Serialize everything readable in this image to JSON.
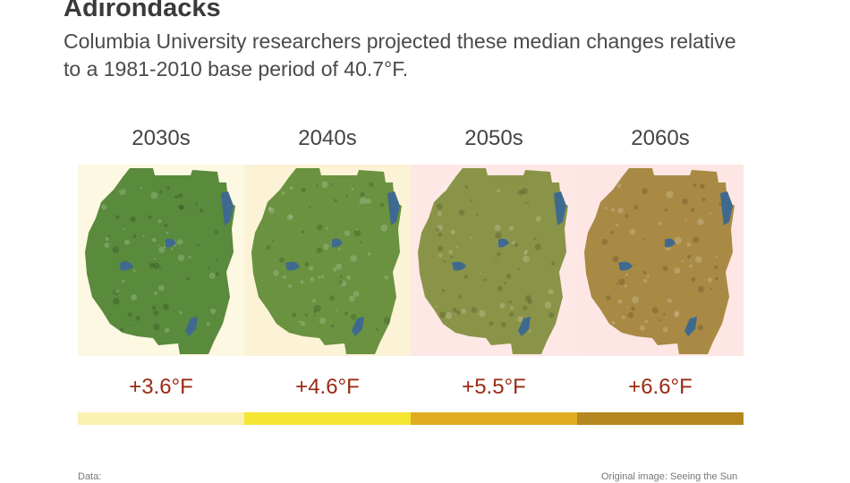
{
  "header": {
    "title": "Adirondacks",
    "subtitle": "Columbia University researchers projected these median changes relative to a 1981-2010 base period of 40.7°F."
  },
  "periods": [
    {
      "label": "2030s",
      "change": "+3.6°F",
      "bg": "#fdf8e2",
      "map_tint": "#5a8a3c",
      "bar": "#fbf1b0"
    },
    {
      "label": "2040s",
      "change": "+4.6°F",
      "bg": "#fcf3d6",
      "map_tint": "#6a9240",
      "bar": "#f4e533"
    },
    {
      "label": "2050s",
      "change": "+5.5°F",
      "bg": "#fde8e6",
      "map_tint": "#8a9448",
      "bar": "#e1ac22"
    },
    {
      "label": "2060s",
      "change": "+6.6°F",
      "bg": "#fde6e4",
      "map_tint": "#a88a44",
      "bar": "#b5871f"
    }
  ],
  "colors": {
    "change_text": "#9a2a14",
    "water": "#3f6a8f"
  },
  "footer": {
    "left": "Data:",
    "right": "Original image: Seeing the Sun"
  }
}
